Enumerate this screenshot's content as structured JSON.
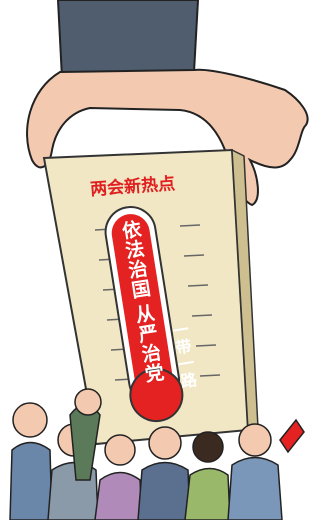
{
  "caption": "两会新热点",
  "tube_text": [
    "依法治国",
    "从严治党",
    "一带一路"
  ]
}
